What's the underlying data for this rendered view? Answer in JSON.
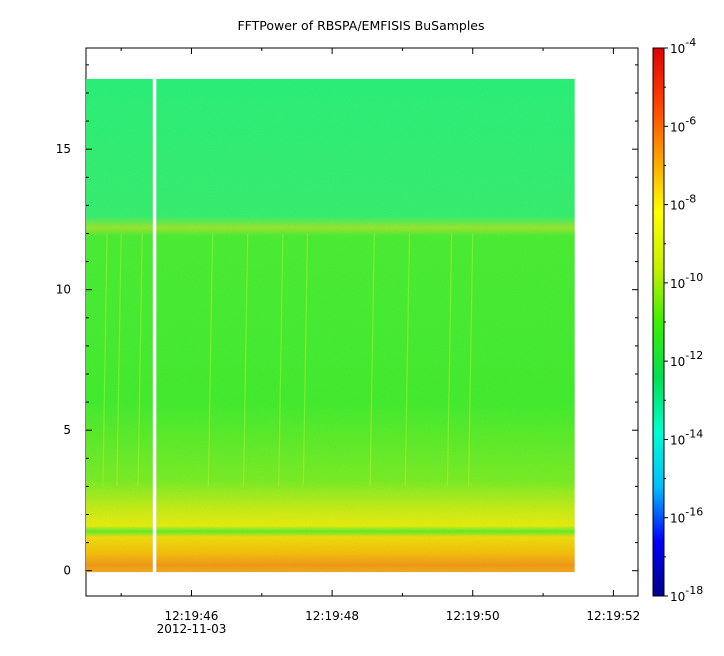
{
  "chart_data": {
    "type": "heatmap",
    "title": "FFTPower of RBSPA/EMFISIS  BuSamples",
    "xlabel": "",
    "ylabel": "",
    "x_ticks": [
      {
        "value": 0,
        "label": "12:19:46",
        "sublabel": "2012-11-03"
      },
      {
        "value": 2,
        "label": "12:19:48",
        "sublabel": ""
      },
      {
        "value": 4,
        "label": "12:19:50",
        "sublabel": ""
      },
      {
        "value": 6,
        "label": "12:19:52",
        "sublabel": ""
      }
    ],
    "x_minor_ticks": [
      -1,
      1,
      3,
      5
    ],
    "xlim": [
      -1.5,
      6.35
    ],
    "y_ticks": [
      0,
      5,
      10,
      15
    ],
    "ylim": [
      -0.9,
      18.6
    ],
    "data_extent": {
      "x": [
        -1.5,
        5.45
      ],
      "y": [
        -0.05,
        17.5
      ]
    },
    "data_gap": {
      "x": [
        -0.55,
        -0.5
      ]
    },
    "colorbar": {
      "scale": "log",
      "range": [
        1e-18,
        0.0001
      ],
      "ticks": [
        {
          "base": "10",
          "exp": "-4",
          "value": 0.0001
        },
        {
          "base": "10",
          "exp": "-6",
          "value": 1e-06
        },
        {
          "base": "10",
          "exp": "-8",
          "value": 1e-08
        },
        {
          "base": "10",
          "exp": "-10",
          "value": 1e-10
        },
        {
          "base": "10",
          "exp": "-12",
          "value": 1e-12
        },
        {
          "base": "10",
          "exp": "-14",
          "value": 1e-14
        },
        {
          "base": "10",
          "exp": "-16",
          "value": 1e-16
        },
        {
          "base": "10",
          "exp": "-18",
          "value": 1e-18
        }
      ],
      "colormap": "rainbow",
      "colors": [
        "#00008c",
        "#0000ff",
        "#00bfff",
        "#00ffd0",
        "#00e050",
        "#3cf000",
        "#c8f000",
        "#ffff00",
        "#ffa000",
        "#ff4000",
        "#e00000"
      ]
    },
    "grid": false
  }
}
